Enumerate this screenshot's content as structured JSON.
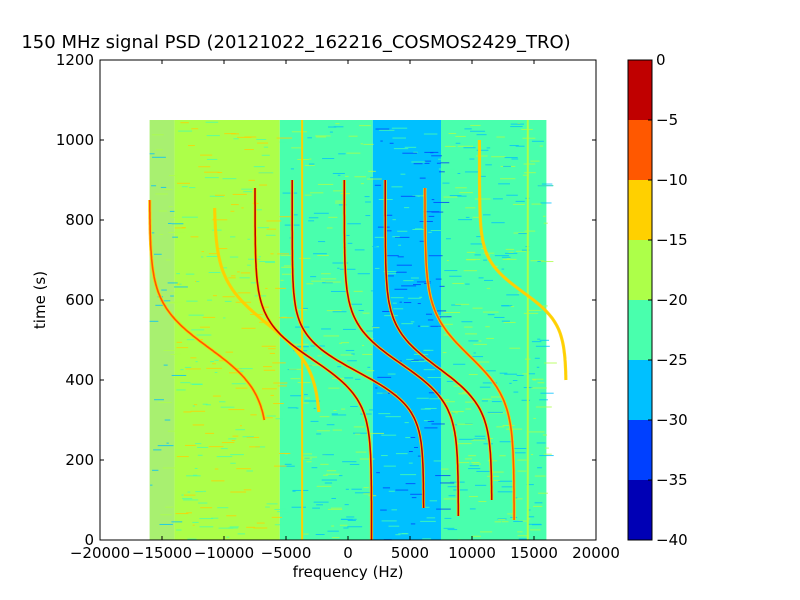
{
  "chart_data": {
    "type": "heatmap",
    "title": "150 MHz signal PSD (20121022_162216_COSMOS2429_TRO)",
    "xlabel": "frequency (Hz)",
    "ylabel": "time (s)",
    "xlim": [
      -20000,
      20000
    ],
    "ylim": [
      0,
      1200
    ],
    "xticks": [
      -20000,
      -15000,
      -10000,
      -5000,
      0,
      5000,
      10000,
      15000,
      20000
    ],
    "xtick_labels": [
      "−20000",
      "−15000",
      "−10000",
      "−5000",
      "0",
      "5000",
      "10000",
      "15000",
      "20000"
    ],
    "yticks": [
      0,
      200,
      400,
      600,
      800,
      1000,
      1200
    ],
    "ytick_labels": [
      "0",
      "200",
      "400",
      "600",
      "800",
      "1000",
      "1200"
    ],
    "data_extent": {
      "x": [
        -16000,
        16000
      ],
      "y": [
        0,
        1050
      ]
    },
    "colorbar": {
      "range": [
        -40,
        0
      ],
      "ticks": [
        0,
        -5,
        -10,
        -15,
        -20,
        -25,
        -30,
        -35,
        -40
      ],
      "tick_labels": [
        "0",
        "−5",
        "−10",
        "−15",
        "−20",
        "−25",
        "−30",
        "−35",
        "−40"
      ],
      "levels": [
        {
          "min": -40,
          "max": -35,
          "color": "#0000b5"
        },
        {
          "min": -35,
          "max": -30,
          "color": "#0040ff"
        },
        {
          "min": -30,
          "max": -25,
          "color": "#00c0ff"
        },
        {
          "min": -25,
          "max": -20,
          "color": "#49ffad"
        },
        {
          "min": -20,
          "max": -15,
          "color": "#adff49"
        },
        {
          "min": -15,
          "max": -10,
          "color": "#ffd000"
        },
        {
          "min": -10,
          "max": -5,
          "color": "#ff5800"
        },
        {
          "min": -5,
          "max": 0,
          "color": "#c00000"
        }
      ]
    },
    "background_bands": [
      {
        "x": [
          -16000,
          -14000
        ],
        "level": -20,
        "color": "#a8f070"
      },
      {
        "x": [
          -14000,
          -5500
        ],
        "level": -17,
        "color": "#adff49"
      },
      {
        "x": [
          -5500,
          2000
        ],
        "level": -22,
        "color": "#49ffad"
      },
      {
        "x": [
          2000,
          7500
        ],
        "level": -27,
        "color": "#00c0ff"
      },
      {
        "x": [
          7500,
          16000
        ],
        "level": -22,
        "color": "#49ffad"
      }
    ],
    "vertical_lines": [
      {
        "x": -3700,
        "y": [
          0,
          1050
        ],
        "color": "#ffd000"
      },
      {
        "x": 14500,
        "y": [
          0,
          1050
        ],
        "color": "#adff49"
      }
    ],
    "doppler_traces": [
      {
        "x0": -11200,
        "amp": 4800,
        "t0": 480,
        "tau": 110,
        "y": [
          300,
          850
        ],
        "color": "#ff5800"
      },
      {
        "x0": -6500,
        "amp": 4300,
        "t0": 540,
        "tau": 110,
        "y": [
          320,
          830
        ],
        "color": "#ffd000"
      },
      {
        "x0": -2800,
        "amp": 4700,
        "t0": 450,
        "tau": 100,
        "y": [
          0,
          880
        ],
        "color": "#c00000"
      },
      {
        "x0": 800,
        "amp": 5300,
        "t0": 420,
        "tau": 90,
        "y": [
          80,
          900
        ],
        "color": "#c00000"
      },
      {
        "x0": 4300,
        "amp": 4600,
        "t0": 440,
        "tau": 100,
        "y": [
          60,
          900
        ],
        "color": "#c00000"
      },
      {
        "x0": 7300,
        "amp": 4300,
        "t0": 430,
        "tau": 100,
        "y": [
          100,
          900
        ],
        "color": "#c00000"
      },
      {
        "x0": 9800,
        "amp": 3600,
        "t0": 460,
        "tau": 110,
        "y": [
          50,
          880
        ],
        "color": "#ff5800"
      },
      {
        "x0": 14100,
        "amp": 3500,
        "t0": 620,
        "tau": 80,
        "y": [
          400,
          1000
        ],
        "color": "#ffd000"
      }
    ]
  }
}
